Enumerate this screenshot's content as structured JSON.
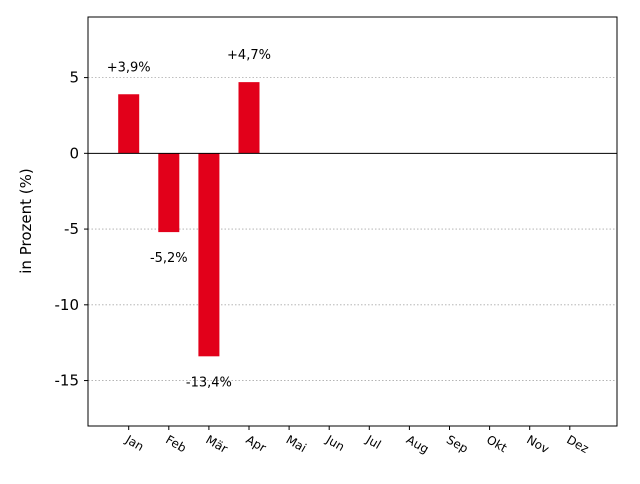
{
  "chart_data": {
    "type": "bar",
    "title": "",
    "xlabel": "",
    "ylabel": "in Prozent (%)",
    "ylim": [
      -18,
      9
    ],
    "yticks": [
      5,
      0,
      -5,
      -10,
      -15
    ],
    "ytick_labels": [
      "5",
      "0",
      "-5",
      "-10",
      "-15"
    ],
    "grid": "y dotted",
    "categories": [
      "Jan",
      "Feb",
      "Mär",
      "Apr",
      "Mai",
      "Jun",
      "Jul",
      "Aug",
      "Sep",
      "Okt",
      "Nov",
      "Dez"
    ],
    "values": [
      3.9,
      -5.2,
      -13.4,
      4.7,
      0,
      0,
      0,
      0,
      0,
      0,
      0,
      0
    ],
    "data_labels": [
      "+3,9%",
      "-5,2%",
      "-13,4%",
      "+4,7%",
      "",
      "",
      "",
      "",
      "",
      "",
      "",
      ""
    ],
    "bar_color": "#e2001a"
  }
}
